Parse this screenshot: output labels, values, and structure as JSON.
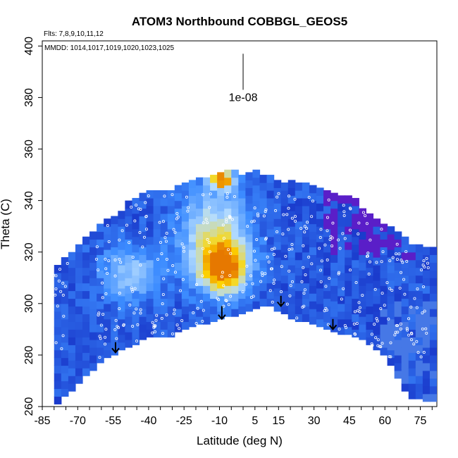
{
  "chart_data": {
    "type": "heatmap",
    "title": "ATOM3 Northbound COBBGL_GEOS5",
    "subtitle_flights": "Flts: 7,8,9,10,11,12",
    "subtitle_dates": "MMDD: 1014,1017,1019,1020,1023,1025",
    "xlabel": "Latitude (deg N)",
    "ylabel": "Theta (C)",
    "xlim": [
      -85,
      82
    ],
    "ylim": [
      260,
      402
    ],
    "x_ticks": [
      -85,
      -70,
      -55,
      -40,
      -25,
      -10,
      5,
      15,
      30,
      45,
      60,
      75
    ],
    "y_ticks": [
      260,
      280,
      300,
      320,
      340,
      360,
      380,
      400
    ],
    "scale_label": "1e-08",
    "scale_bar": {
      "x": 0,
      "y0": 383,
      "y1": 397
    },
    "colors": {
      "low": "#0a14b4",
      "mid": "#3c8cff",
      "light": "#b4dcff",
      "high": "#ffd700",
      "peak": "#e67800",
      "purple": "#5a1ec8"
    },
    "hotspots": [
      {
        "lat": -8,
        "theta": 314,
        "level": "peak"
      },
      {
        "lat": -9,
        "theta": 348,
        "level": "peak"
      }
    ],
    "arrows": [
      {
        "lat": -54,
        "theta_top": 285,
        "theta_bottom": 281
      },
      {
        "lat": -9,
        "theta_top": 299,
        "theta_bottom": 294
      },
      {
        "lat": 16,
        "theta_top": 303,
        "theta_bottom": 299
      },
      {
        "lat": 38,
        "theta_top": 294,
        "theta_bottom": 290
      }
    ],
    "boundary_top": [
      [
        -80,
        312
      ],
      [
        -70,
        320
      ],
      [
        -60,
        330
      ],
      [
        -50,
        337
      ],
      [
        -40,
        342
      ],
      [
        -30,
        344
      ],
      [
        -20,
        346
      ],
      [
        -10,
        350
      ],
      [
        0,
        350
      ],
      [
        10,
        349
      ],
      [
        20,
        346
      ],
      [
        30,
        343
      ],
      [
        40,
        342
      ],
      [
        50,
        337
      ],
      [
        60,
        330
      ],
      [
        70,
        323
      ],
      [
        80,
        320
      ]
    ],
    "boundary_bottom": [
      [
        -80,
        260
      ],
      [
        -70,
        269
      ],
      [
        -60,
        278
      ],
      [
        -50,
        283
      ],
      [
        -40,
        287
      ],
      [
        -30,
        288
      ],
      [
        -20,
        292
      ],
      [
        -10,
        294
      ],
      [
        0,
        297
      ],
      [
        10,
        300
      ],
      [
        20,
        295
      ],
      [
        30,
        292
      ],
      [
        40,
        289
      ],
      [
        50,
        287
      ],
      [
        60,
        280
      ],
      [
        70,
        264
      ],
      [
        80,
        262
      ]
    ]
  }
}
